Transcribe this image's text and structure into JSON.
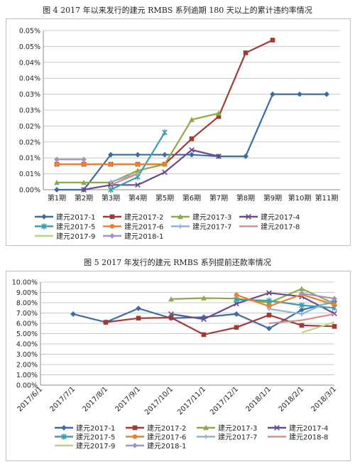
{
  "figure1": {
    "caption": "图 4 2017 年以来发行的建元 RMBS 系列逾期 180 天以上的累计违约率情况"
  },
  "figure2": {
    "caption": "图 5 2017 年发行的建元 RMBS 系列提前还款率情况"
  },
  "chart_data": [
    {
      "type": "line",
      "categories": [
        "第1期",
        "第2期",
        "第3期",
        "第4期",
        "第5期",
        "第6期",
        "第7期",
        "第8期",
        "第9期",
        "第10期",
        "第11期"
      ],
      "y_tick_labels": [
        "0.00%",
        "0.01%",
        "0.01%",
        "0.02%",
        "0.02%",
        "0.03%",
        "0.03%",
        "0.04%",
        "0.04%",
        "0.05%",
        "0.05%"
      ],
      "ylim": [
        0,
        0.1
      ],
      "grid": true,
      "legend_position": "bottom",
      "series": [
        {
          "name": "建元2017-1",
          "color": "#3d6ca5",
          "marker": "diamond",
          "values": [
            0,
            0,
            0.022,
            0.022,
            0.022,
            0.022,
            0.021,
            0.021,
            0.06,
            0.06,
            0.06
          ]
        },
        {
          "name": "建元2017-2",
          "color": "#a33935",
          "marker": "square",
          "values": [
            0.016,
            0.016,
            0.016,
            0.016,
            0.016,
            0.032,
            0.046,
            0.086,
            0.094,
            null,
            null
          ]
        },
        {
          "name": "建元2017-3",
          "color": "#8eaa47",
          "marker": "triangle",
          "values": [
            0.0045,
            0.0045,
            0.0045,
            0.012,
            0.016,
            0.044,
            0.048,
            null,
            null,
            null,
            null
          ]
        },
        {
          "name": "建元2017-4",
          "color": "#6a4b8a",
          "marker": "x",
          "values": [
            null,
            0,
            0.003,
            0.003,
            0.011,
            0.025,
            0.021,
            null,
            null,
            null,
            null
          ]
        },
        {
          "name": "建元2017-5",
          "color": "#3b9db0",
          "marker": "star",
          "values": [
            null,
            null,
            0,
            0.008,
            0.036,
            null,
            null,
            null,
            null,
            null,
            null
          ]
        },
        {
          "name": "建元2017-6",
          "color": "#e9812f",
          "marker": "circle",
          "values": [
            0.016,
            0.016,
            0.016,
            0.016,
            0.016,
            null,
            null,
            null,
            null,
            null,
            null
          ]
        },
        {
          "name": "建元2017-7",
          "color": "#8eb2dc",
          "marker": "plus",
          "values": [
            null,
            null,
            0.005,
            0.01,
            null,
            null,
            null,
            null,
            null,
            null,
            null
          ]
        },
        {
          "name": "建元2017-8",
          "color": "#d58f8a",
          "marker": "none",
          "values": [
            null,
            null,
            0.003,
            0.01,
            null,
            null,
            null,
            null,
            null,
            null,
            null
          ]
        },
        {
          "name": "建元2017-9",
          "color": "#b9d385",
          "marker": "none",
          "values": [
            null,
            null,
            0.002,
            null,
            null,
            null,
            null,
            null,
            null,
            null,
            null
          ]
        },
        {
          "name": "建元2018-1",
          "color": "#a493c1",
          "marker": "diamond",
          "values": [
            0.019,
            0.019,
            null,
            null,
            null,
            null,
            null,
            null,
            null,
            null,
            null
          ]
        }
      ]
    },
    {
      "type": "line",
      "x_tick_labels": [
        "2017/6/1",
        "2017/7/1",
        "2017/8/1",
        "2017/9/1",
        "2017/10/1",
        "2017/11/1",
        "2017/12/1",
        "2018/1/1",
        "2018/2/1",
        "2018/3/1"
      ],
      "y_tick_labels": [
        "0.00%",
        "1.00%",
        "2.00%",
        "3.00%",
        "4.00%",
        "5.00%",
        "6.00%",
        "7.00%",
        "8.00%",
        "9.00%",
        "10.00%"
      ],
      "ylim": [
        0,
        10
      ],
      "grid": true,
      "legend_position": "bottom",
      "series": [
        {
          "name": "建元2017-1",
          "color": "#3d6ca5",
          "marker": "diamond",
          "points": [
            [
              "2017/7/1",
              6.9
            ],
            [
              "2017/8/1",
              6.1
            ],
            [
              "2017/9/1",
              7.45
            ],
            [
              "2017/10/1",
              6.5
            ],
            [
              "2017/11/1",
              6.6
            ],
            [
              "2017/12/1",
              6.9
            ],
            [
              "2018/1/1",
              5.5
            ],
            [
              "2018/2/1",
              7.3
            ],
            [
              "2018/3/1",
              8.1
            ]
          ]
        },
        {
          "name": "建元2017-2",
          "color": "#a33935",
          "marker": "square",
          "points": [
            [
              "2017/8/1",
              6.1
            ],
            [
              "2017/9/1",
              6.5
            ],
            [
              "2017/10/1",
              6.55
            ],
            [
              "2017/11/1",
              4.9
            ],
            [
              "2017/12/1",
              5.6
            ],
            [
              "2018/1/1",
              6.8
            ],
            [
              "2018/2/1",
              5.8
            ],
            [
              "2018/3/1",
              5.7
            ]
          ]
        },
        {
          "name": "建元2017-3",
          "color": "#8eaa47",
          "marker": "triangle",
          "points": [
            [
              "2017/10/1",
              8.35
            ],
            [
              "2017/11/1",
              8.45
            ],
            [
              "2017/12/1",
              8.4
            ],
            [
              "2018/1/1",
              8.0
            ],
            [
              "2018/2/1",
              9.35
            ],
            [
              "2018/3/1",
              7.9
            ]
          ]
        },
        {
          "name": "建元2017-4",
          "color": "#6a4b8a",
          "marker": "x",
          "points": [
            [
              "2017/10/1",
              6.9
            ],
            [
              "2017/11/1",
              6.4
            ],
            [
              "2017/12/1",
              7.9
            ],
            [
              "2018/1/1",
              8.95
            ],
            [
              "2018/2/1",
              8.6
            ],
            [
              "2018/3/1",
              6.95
            ]
          ]
        },
        {
          "name": "建元2017-5",
          "color": "#3b9db0",
          "marker": "star",
          "points": [
            [
              "2017/12/1",
              8.3
            ],
            [
              "2018/1/1",
              8.2
            ],
            [
              "2018/2/1",
              7.75
            ],
            [
              "2018/3/1",
              7.5
            ]
          ]
        },
        {
          "name": "建元2017-6",
          "color": "#e9812f",
          "marker": "circle",
          "points": [
            [
              "2017/12/1",
              8.75
            ],
            [
              "2018/1/1",
              7.65
            ],
            [
              "2018/2/1",
              8.8
            ],
            [
              "2018/3/1",
              7.8
            ]
          ]
        },
        {
          "name": "建元2017-7",
          "color": "#8eb2dc",
          "marker": "plus",
          "points": [
            [
              "2018/1/1",
              7.4
            ],
            [
              "2018/2/1",
              6.9
            ],
            [
              "2018/3/1",
              8.3
            ]
          ]
        },
        {
          "name": "建元2018-8",
          "color": "#d58f8a",
          "marker": "none",
          "points": [
            [
              "2018/1/1",
              6.0
            ],
            [
              "2018/2/1",
              6.3
            ],
            [
              "2018/3/1",
              6.9
            ]
          ]
        },
        {
          "name": "建元2017-9",
          "color": "#b9d385",
          "marker": "none",
          "points": [
            [
              "2018/2/1",
              5.1
            ],
            [
              "2018/3/1",
              6.1
            ]
          ]
        },
        {
          "name": "建元2018-1",
          "color": "#a493c1",
          "marker": "diamond",
          "points": [
            [
              "2018/2/1",
              8.9
            ],
            [
              "2018/3/1",
              8.4
            ]
          ]
        }
      ]
    }
  ]
}
